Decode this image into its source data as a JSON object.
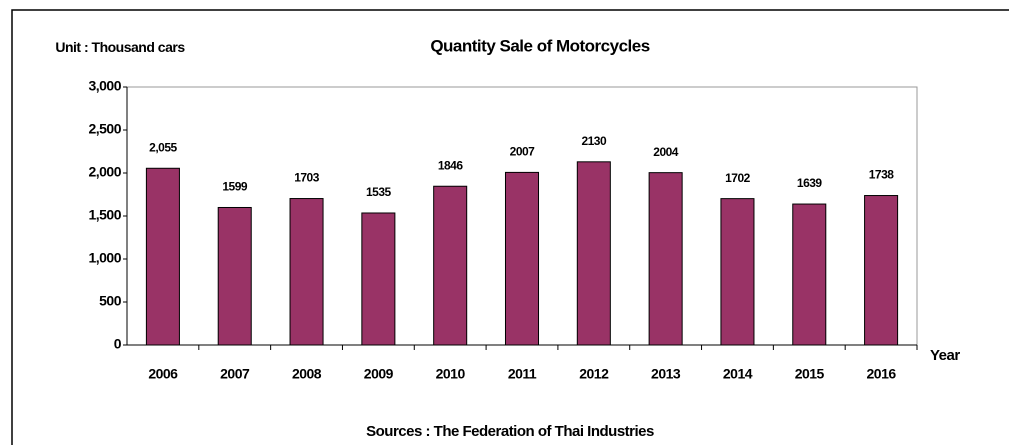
{
  "chart_data": {
    "type": "bar",
    "title": "Quantity Sale of Motorcycles",
    "y_label": "Unit : Thousand cars",
    "x_label": "Year",
    "source": "Sources : The Federation of Thai Industries",
    "categories": [
      "2006",
      "2007",
      "2008",
      "2009",
      "2010",
      "2011",
      "2012",
      "2013",
      "2014",
      "2015",
      "2016"
    ],
    "values": [
      2055,
      1599,
      1703,
      1535,
      1846,
      2007,
      2130,
      2004,
      1702,
      1639,
      1738
    ],
    "value_labels": [
      "2,055",
      "1599",
      "1703",
      "1535",
      "1846",
      "2007",
      "2130",
      "2004",
      "1702",
      "1639",
      "1738"
    ],
    "color": "#993366",
    "ylim": [
      0,
      3000
    ],
    "yticks": [
      0,
      500,
      {
        "value": 1000,
        "label": "1,000"
      },
      {
        "value": 1500,
        "label": "1,500"
      },
      {
        "value": 2000,
        "label": "2,000"
      },
      {
        "value": 2500,
        "label": "2,500"
      },
      {
        "value": 3000,
        "label": "3,000"
      }
    ],
    "grid": false
  }
}
